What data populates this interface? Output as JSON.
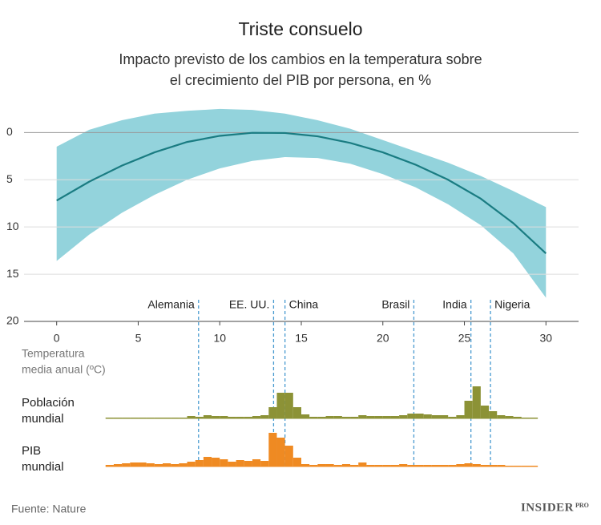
{
  "chart_data": [
    {
      "type": "line",
      "title": "Triste consuelo",
      "subtitle": [
        "Impacto previsto de los cambios en la temperatura sobre",
        "el crecimiento del PIB por persona, en %"
      ],
      "x": [
        0,
        2,
        4,
        6,
        8,
        10,
        12,
        14,
        16,
        18,
        20,
        22,
        24,
        26,
        28,
        30
      ],
      "values": [
        7.2,
        5.2,
        3.5,
        2.1,
        1.0,
        0.35,
        0.03,
        0.05,
        0.4,
        1.1,
        2.1,
        3.4,
        5.0,
        7.0,
        9.6,
        12.8
      ],
      "color": "#1a7c82",
      "band_upper": [
        1.5,
        -0.3,
        -1.3,
        -2.0,
        -2.3,
        -2.5,
        -2.4,
        -2.0,
        -1.3,
        -0.4,
        0.8,
        2.0,
        3.2,
        4.6,
        6.2,
        7.9
      ],
      "band_lower": [
        13.6,
        10.8,
        8.5,
        6.6,
        5.0,
        3.8,
        3.0,
        2.6,
        2.7,
        3.3,
        4.4,
        5.8,
        7.6,
        9.8,
        12.8,
        17.5
      ],
      "band_color": "#93d3dc",
      "xlim": [
        -2,
        32
      ],
      "xticks": [
        0,
        5,
        10,
        15,
        20,
        25,
        30
      ],
      "ylim": [
        -3,
        20
      ],
      "yticks": [
        0,
        5,
        10,
        15,
        20
      ],
      "y_inverted": true,
      "grid": true,
      "xlabel": [
        "Temperatura",
        "media anual (ºC)"
      ],
      "annotation_color": "#1a7c82",
      "annotation_line_color": "#4a9bd0",
      "annotations": [
        {
          "label": "Alemania",
          "x": 8.7
        },
        {
          "label": "EE. UU.",
          "x": 13.3
        },
        {
          "label": "China",
          "x": 14.0
        },
        {
          "label": "Brasil",
          "x": 21.9
        },
        {
          "label": "India",
          "x": 25.4
        },
        {
          "label": "Nigeria",
          "x": 26.6
        }
      ]
    },
    {
      "type": "histogram",
      "name": [
        "Población",
        "mundial"
      ],
      "color": "#8c9236",
      "xlim": [
        -2,
        32
      ],
      "bins": [
        3,
        3.5,
        4,
        4.5,
        5,
        5.5,
        6,
        6.5,
        7,
        7.5,
        8,
        8.5,
        9,
        9.5,
        10,
        10.5,
        11,
        11.5,
        12,
        12.5,
        13,
        13.5,
        14,
        14.5,
        15,
        15.5,
        16,
        16.5,
        17,
        17.5,
        18,
        18.5,
        19,
        19.5,
        20,
        20.5,
        21,
        21.5,
        22,
        22.5,
        23,
        23.5,
        24,
        24.5,
        25,
        25.5,
        26,
        26.5,
        27,
        27.5,
        28,
        28.5,
        29,
        29.5
      ],
      "counts": [
        1,
        1,
        1,
        1,
        1,
        1,
        1,
        1,
        1,
        1,
        3,
        2,
        4,
        3,
        3,
        2,
        2,
        2,
        3,
        4,
        14,
        32,
        32,
        14,
        5,
        2,
        2,
        3,
        3,
        2,
        2,
        4,
        3,
        3,
        3,
        3,
        4,
        6,
        6,
        5,
        4,
        4,
        2,
        4,
        22,
        40,
        16,
        9,
        4,
        3,
        2,
        1,
        1
      ]
    },
    {
      "type": "histogram",
      "name": [
        "PIB",
        "mundial"
      ],
      "color": "#ef8a22",
      "xlim": [
        -2,
        32
      ],
      "bins": [
        3,
        3.5,
        4,
        4.5,
        5,
        5.5,
        6,
        6.5,
        7,
        7.5,
        8,
        8.5,
        9,
        9.5,
        10,
        10.5,
        11,
        11.5,
        12,
        12.5,
        13,
        13.5,
        14,
        14.5,
        15,
        15.5,
        16,
        16.5,
        17,
        17.5,
        18,
        18.5,
        19,
        19.5,
        20,
        20.5,
        21,
        21.5,
        22,
        22.5,
        23,
        23.5,
        24,
        24.5,
        25,
        25.5,
        26,
        26.5,
        27,
        27.5,
        28,
        28.5,
        29,
        29.5
      ],
      "counts": [
        2,
        3,
        4,
        5,
        5,
        4,
        3,
        4,
        3,
        4,
        6,
        8,
        12,
        11,
        9,
        6,
        8,
        7,
        9,
        7,
        42,
        36,
        26,
        11,
        3,
        2,
        3,
        3,
        2,
        3,
        2,
        5,
        2,
        2,
        2,
        2,
        3,
        2,
        2,
        2,
        2,
        2,
        2,
        3,
        4,
        3,
        2,
        2,
        2,
        1,
        1,
        1,
        1
      ]
    }
  ],
  "source": "Fuente: Nature",
  "brand": "INSIDER",
  "brand_sub": "PRO"
}
